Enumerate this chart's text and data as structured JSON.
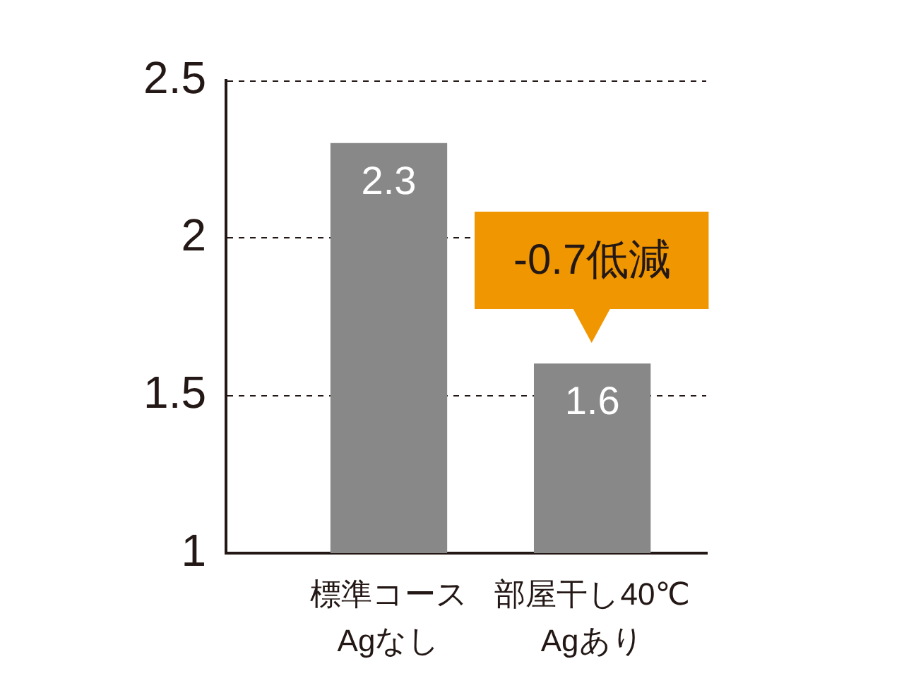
{
  "chart_data": {
    "type": "bar",
    "categories": [
      "標準コース\nAgなし",
      "部屋干し40℃\nAgあり"
    ],
    "values": [
      2.3,
      1.6
    ],
    "color": "#888888",
    "ylim": [
      1,
      2.5
    ],
    "yticks": [
      1,
      1.5,
      2,
      2.5
    ],
    "grid": "y",
    "data_labels": true,
    "annotations": [
      {
        "text": "-0.7低減",
        "x": "部屋干し40℃\nAgあり",
        "y": 1.6
      }
    ]
  }
}
